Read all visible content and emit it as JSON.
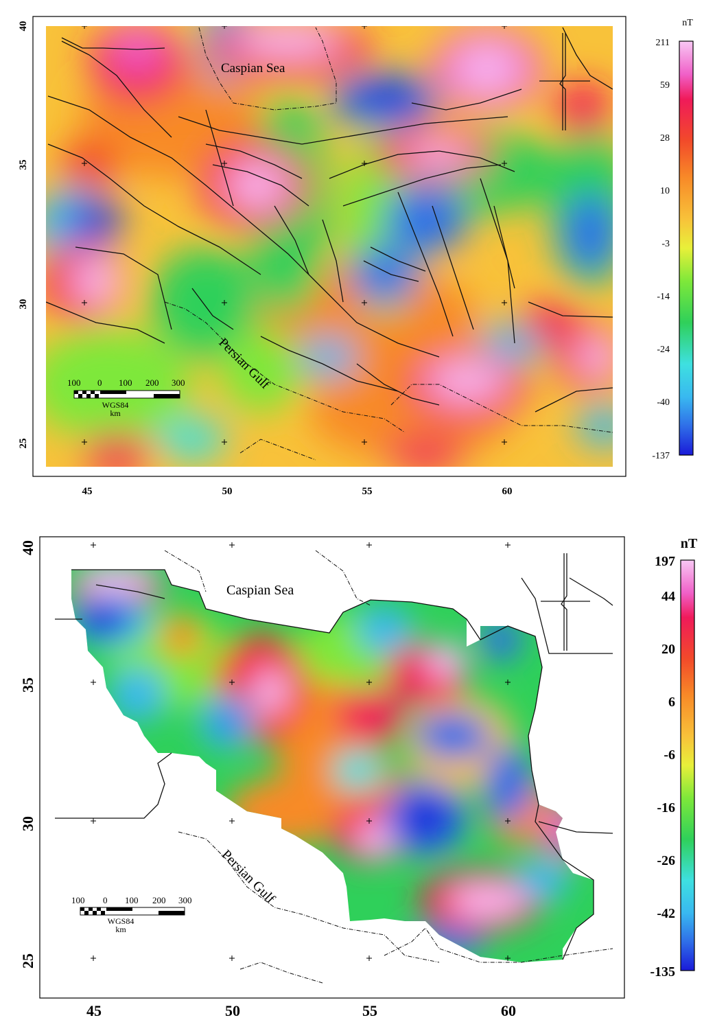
{
  "maps": [
    {
      "id": "top",
      "labels": {
        "sea": "Caspian Sea",
        "gulf": "Persian Gulf"
      },
      "x_ticks": [
        "45",
        "50",
        "55",
        "60"
      ],
      "y_ticks": [
        "40",
        "35",
        "30",
        "25"
      ],
      "scale_bar": {
        "numbers": [
          "100",
          "0",
          "100",
          "200",
          "300"
        ],
        "datum": "WGS84",
        "unit": "km"
      },
      "colorbar": {
        "unit": "nT",
        "ticks": [
          "211",
          "59",
          "28",
          "10",
          "-3",
          "-14",
          "-24",
          "-40",
          "-137"
        ]
      }
    },
    {
      "id": "bottom",
      "labels": {
        "sea": "Caspian Sea",
        "gulf": "Persian Gulf"
      },
      "x_ticks": [
        "45",
        "50",
        "55",
        "60"
      ],
      "y_ticks": [
        "40",
        "35",
        "30",
        "25"
      ],
      "scale_bar": {
        "numbers": [
          "100",
          "0",
          "100",
          "200",
          "300"
        ],
        "datum": "WGS84",
        "unit": "km"
      },
      "colorbar": {
        "unit": "nT",
        "ticks": [
          "197",
          "44",
          "20",
          "6",
          "-6",
          "-16",
          "-26",
          "-42",
          "-135"
        ]
      }
    }
  ],
  "colors": {
    "palette": [
      "#1a1ad8",
      "#2f6ee8",
      "#39b8f0",
      "#3ee0e0",
      "#2fd05a",
      "#7ee83a",
      "#e8f03a",
      "#f8c23a",
      "#f88a28",
      "#f24a2a",
      "#f01a5a",
      "#f060c8",
      "#f8b8f0"
    ]
  }
}
